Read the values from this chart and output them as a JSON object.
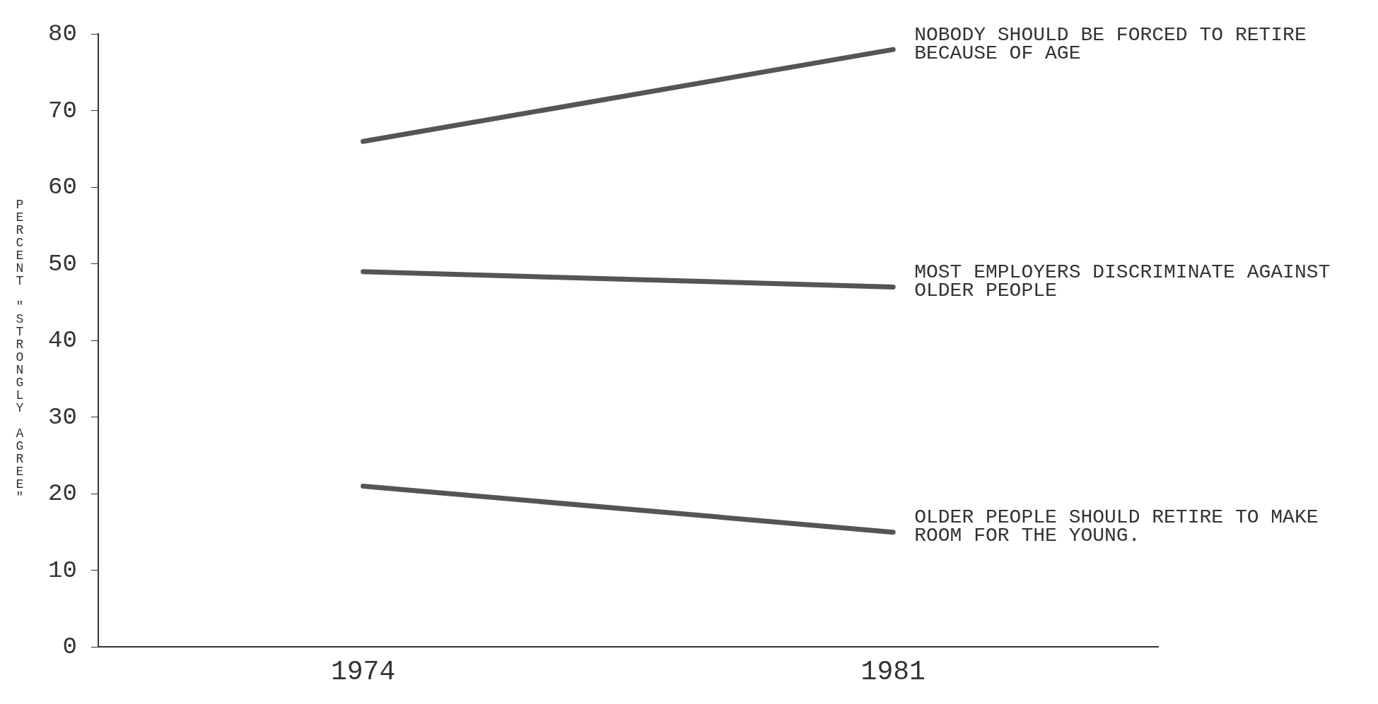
{
  "chart_data": {
    "type": "line",
    "ylabel": "PERCENT \"STRONGLY AGREE\"",
    "categories": [
      "1974",
      "1981"
    ],
    "series": [
      {
        "name": "NOBODY SHOULD BE FORCED TO RETIRE BECAUSE OF AGE",
        "color": "#555555",
        "values": [
          66,
          78
        ]
      },
      {
        "name": "MOST EMPLOYERS DISCRIMINATE AGAINST OLDER PEOPLE",
        "color": "#555555",
        "values": [
          49,
          47
        ]
      },
      {
        "name": "OLDER PEOPLE SHOULD RETIRE TO MAKE ROOM FOR THE YOUNG.",
        "color": "#555555",
        "values": [
          21,
          15
        ]
      }
    ],
    "ylim": [
      0,
      80
    ],
    "yticks": [
      0,
      10,
      20,
      30,
      40,
      50,
      60,
      70,
      80
    ],
    "grid": false,
    "legend": false,
    "marker": "none",
    "line_style": "solid"
  }
}
